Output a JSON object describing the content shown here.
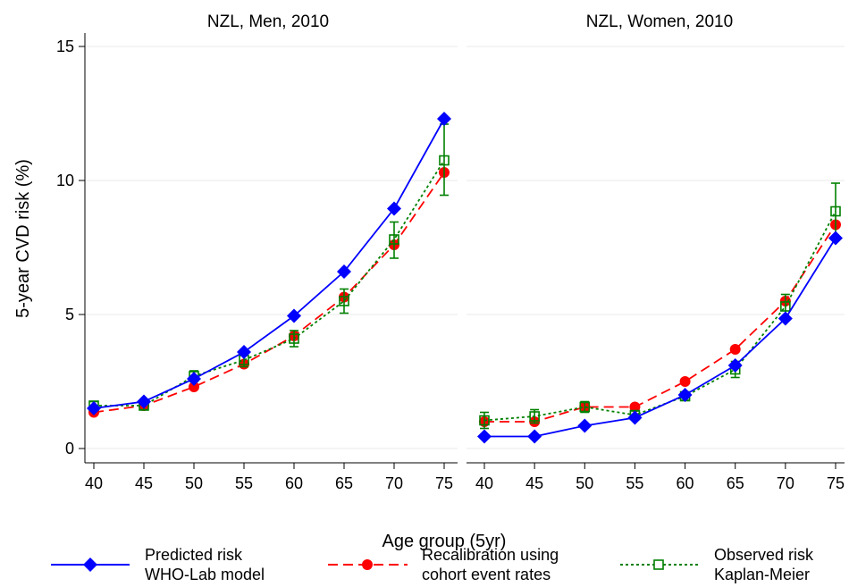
{
  "chart_data": [
    {
      "type": "line",
      "title": "NZL, Men, 2010",
      "x": [
        40,
        45,
        50,
        55,
        60,
        65,
        70,
        75
      ],
      "ylim": [
        0,
        15
      ],
      "series": [
        {
          "name": "Predicted risk WHO-Lab model",
          "color": "#0000ff",
          "values": [
            1.5,
            1.75,
            2.6,
            3.6,
            4.95,
            6.6,
            8.95,
            12.3
          ]
        },
        {
          "name": "Recalibration using cohort event rates",
          "color": "#ff0000",
          "values": [
            1.35,
            1.6,
            2.3,
            3.15,
            4.2,
            5.65,
            7.6,
            10.3
          ]
        },
        {
          "name": "Observed risk Kaplan-Meier",
          "color": "#008000",
          "values": [
            1.6,
            1.6,
            2.7,
            3.3,
            4.1,
            5.5,
            7.8,
            10.75
          ],
          "ci_low": [
            1.45,
            1.45,
            2.5,
            3.05,
            3.8,
            5.05,
            7.1,
            9.45
          ],
          "ci_high": [
            1.75,
            1.75,
            2.9,
            3.55,
            4.4,
            5.95,
            8.45,
            12.1
          ]
        }
      ]
    },
    {
      "type": "line",
      "title": "NZL, Women, 2010",
      "x": [
        40,
        45,
        50,
        55,
        60,
        65,
        70,
        75
      ],
      "ylim": [
        0,
        15
      ],
      "series": [
        {
          "name": "Predicted risk WHO-Lab model",
          "color": "#0000ff",
          "values": [
            0.45,
            0.45,
            0.85,
            1.15,
            2.0,
            3.1,
            4.85,
            7.85
          ]
        },
        {
          "name": "Recalibration using cohort event rates",
          "color": "#ff0000",
          "values": [
            1.0,
            1.0,
            1.55,
            1.55,
            2.5,
            3.7,
            5.5,
            8.35
          ]
        },
        {
          "name": "Observed risk Kaplan-Meier",
          "color": "#008000",
          "values": [
            1.05,
            1.2,
            1.55,
            1.25,
            1.95,
            2.95,
            5.3,
            8.85
          ],
          "ci_low": [
            0.75,
            0.95,
            1.35,
            1.1,
            1.8,
            2.65,
            4.85,
            7.85
          ],
          "ci_high": [
            1.35,
            1.45,
            1.75,
            1.4,
            2.1,
            3.25,
            5.75,
            9.9
          ]
        }
      ]
    }
  ],
  "axes": {
    "ylabel": "5-year CVD risk (%)",
    "xlabel": "Age group (5yr)",
    "yticks": [
      0,
      5,
      10,
      15
    ],
    "xticks": [
      40,
      45,
      50,
      55,
      60,
      65,
      70,
      75
    ],
    "grid": "horizontal"
  },
  "legend": {
    "placement": "bottom",
    "items": [
      {
        "line1": "Predicted risk",
        "line2": "WHO-Lab model",
        "marker": "diamond-icon"
      },
      {
        "line1": "Recalibration using",
        "line2": "cohort event rates",
        "marker": "circle-icon"
      },
      {
        "line1": "Observed risk",
        "line2": "Kaplan-Meier",
        "marker": "hollow-square-icon"
      }
    ]
  }
}
